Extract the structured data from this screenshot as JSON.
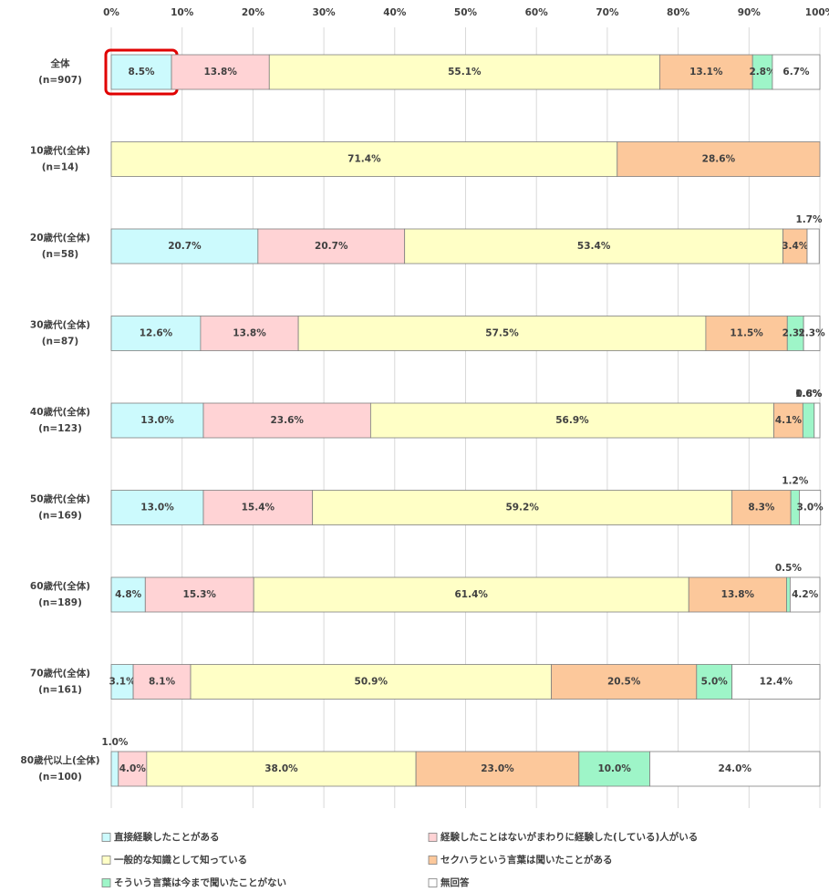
{
  "chart_data": {
    "type": "stacked-barh",
    "categories": [
      "全体",
      "10歳代(全体)",
      "20歳代(全体)",
      "30歳代(全体)",
      "40歳代(全体)",
      "50歳代(全体)",
      "60歳代(全体)",
      "70歳代(全体)",
      "80歳代以上(全体)"
    ],
    "category_notes": [
      "(n=907)",
      "(n=14)",
      "(n=58)",
      "(n=87)",
      "(n=123)",
      "(n=169)",
      "(n=189)",
      "(n=161)",
      "(n=100)"
    ],
    "xlim": [
      0,
      100
    ],
    "xticks": [
      {
        "value": 0,
        "label": "0%"
      },
      {
        "value": 10,
        "label": "10%"
      },
      {
        "value": 20,
        "label": "20%"
      },
      {
        "value": 30,
        "label": "30%"
      },
      {
        "value": 40,
        "label": "40%"
      },
      {
        "value": 50,
        "label": "50%"
      },
      {
        "value": 60,
        "label": "60%"
      },
      {
        "value": 70,
        "label": "70%"
      },
      {
        "value": 80,
        "label": "80%"
      },
      {
        "value": 90,
        "label": "90%"
      },
      {
        "value": 100,
        "label": "100%"
      }
    ],
    "grid": true,
    "series": [
      {
        "name": "直接経験したことがある",
        "color": "#ccfafd",
        "values": [
          8.5,
          null,
          20.7,
          12.6,
          13.0,
          13.0,
          4.8,
          3.1,
          1.0
        ],
        "value_labels": [
          "8.5%",
          null,
          "20.7%",
          "12.6%",
          "13.0%",
          "13.0%",
          "4.8%",
          "3.1%",
          "1.0%"
        ]
      },
      {
        "name": "経験したことはないがまわりに経験した(している)人がいる",
        "color": "#ffd3d5",
        "values": [
          13.8,
          null,
          20.7,
          13.8,
          23.6,
          15.4,
          15.3,
          8.1,
          4.0
        ],
        "value_labels": [
          "13.8%",
          null,
          "20.7%",
          "13.8%",
          "23.6%",
          "15.4%",
          "15.3%",
          "8.1%",
          "4.0%"
        ]
      },
      {
        "name": "一般的な知識として知っている",
        "color": "#ffffc6",
        "values": [
          55.1,
          71.4,
          53.4,
          57.5,
          56.9,
          59.2,
          61.4,
          50.9,
          38.0
        ],
        "value_labels": [
          "55.1%",
          "71.4%",
          "53.4%",
          "57.5%",
          "56.9%",
          "59.2%",
          "61.4%",
          "50.9%",
          "38.0%"
        ]
      },
      {
        "name": "セクハラという言葉は聞いたことがある",
        "color": "#fcc89b",
        "values": [
          13.1,
          28.6,
          3.4,
          11.5,
          4.1,
          8.3,
          13.8,
          20.5,
          23.0
        ],
        "value_labels": [
          "13.1%",
          "28.6%",
          "3.4%",
          "11.5%",
          "4.1%",
          "8.3%",
          "13.8%",
          "20.5%",
          "23.0%"
        ]
      },
      {
        "name": "そういう言葉は今まで聞いたことがない",
        "color": "#9ef5c8",
        "values": [
          2.8,
          null,
          null,
          2.3,
          1.6,
          1.2,
          0.5,
          5.0,
          10.0
        ],
        "value_labels": [
          "2.8%",
          null,
          null,
          "2.3%",
          "1.6%",
          "1.2%",
          "0.5%",
          "5.0%",
          "10.0%"
        ]
      },
      {
        "name": "無回答",
        "color": "#ffffff",
        "values": [
          6.7,
          null,
          1.7,
          2.3,
          0.8,
          3.0,
          4.2,
          12.4,
          24.0
        ],
        "value_labels": [
          "6.7%",
          null,
          "1.7%",
          "2.3%",
          "0.8%",
          "3.0%",
          "4.2%",
          "12.4%",
          "24.0%"
        ]
      }
    ]
  }
}
